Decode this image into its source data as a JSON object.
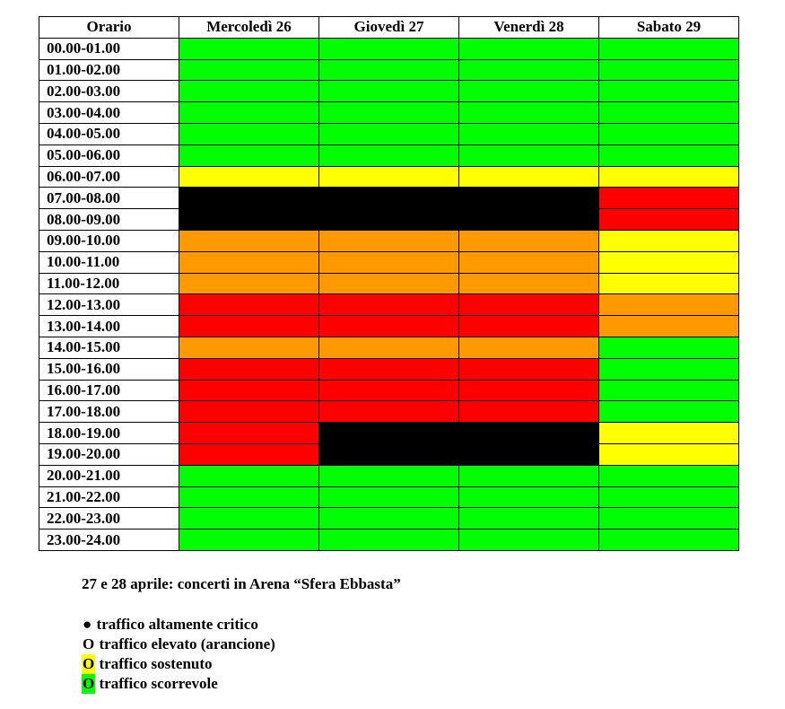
{
  "colors": {
    "green": "#00ff00",
    "yellow": "#ffff00",
    "orange": "#ff9900",
    "red": "#ff0000",
    "black": "#000000"
  },
  "table": {
    "header": [
      "Orario",
      "Mercoledì 26",
      "Giovedì 27",
      "Venerdì 28",
      "Sabato 29"
    ],
    "rows": [
      {
        "time": "00.00-01.00",
        "levels": [
          "green",
          "green",
          "green",
          "green"
        ]
      },
      {
        "time": "01.00-02.00",
        "levels": [
          "green",
          "green",
          "green",
          "green"
        ]
      },
      {
        "time": "02.00-03.00",
        "levels": [
          "green",
          "green",
          "green",
          "green"
        ]
      },
      {
        "time": "03.00-04.00",
        "levels": [
          "green",
          "green",
          "green",
          "green"
        ]
      },
      {
        "time": "04.00-05.00",
        "levels": [
          "green",
          "green",
          "green",
          "green"
        ]
      },
      {
        "time": "05.00-06.00",
        "levels": [
          "green",
          "green",
          "green",
          "green"
        ]
      },
      {
        "time": "06.00-07.00",
        "levels": [
          "yellow",
          "yellow",
          "yellow",
          "yellow"
        ]
      },
      {
        "time": "07.00-08.00",
        "levels": [
          "black",
          "black",
          "black",
          "red"
        ]
      },
      {
        "time": "08.00-09.00",
        "levels": [
          "black",
          "black",
          "black",
          "red"
        ]
      },
      {
        "time": "09.00-10.00",
        "levels": [
          "orange",
          "orange",
          "orange",
          "yellow"
        ]
      },
      {
        "time": "10.00-11.00",
        "levels": [
          "orange",
          "orange",
          "orange",
          "yellow"
        ]
      },
      {
        "time": "11.00-12.00",
        "levels": [
          "orange",
          "orange",
          "orange",
          "yellow"
        ]
      },
      {
        "time": "12.00-13.00",
        "levels": [
          "red",
          "red",
          "red",
          "orange"
        ]
      },
      {
        "time": "13.00-14.00",
        "levels": [
          "red",
          "red",
          "red",
          "orange"
        ]
      },
      {
        "time": "14.00-15.00",
        "levels": [
          "orange",
          "orange",
          "orange",
          "green"
        ]
      },
      {
        "time": "15.00-16.00",
        "levels": [
          "red",
          "red",
          "red",
          "green"
        ]
      },
      {
        "time": "16.00-17.00",
        "levels": [
          "red",
          "red",
          "red",
          "green"
        ]
      },
      {
        "time": "17.00-18.00",
        "levels": [
          "red",
          "red",
          "red",
          "green"
        ]
      },
      {
        "time": "18.00-19.00",
        "levels": [
          "red",
          "black",
          "black",
          "yellow"
        ]
      },
      {
        "time": "19.00-20.00",
        "levels": [
          "red",
          "black",
          "black",
          "yellow"
        ]
      },
      {
        "time": "20.00-21.00",
        "levels": [
          "green",
          "green",
          "green",
          "green"
        ]
      },
      {
        "time": "21.00-22.00",
        "levels": [
          "green",
          "green",
          "green",
          "green"
        ]
      },
      {
        "time": "22.00-23.00",
        "levels": [
          "green",
          "green",
          "green",
          "green"
        ]
      },
      {
        "time": "23.00-24.00",
        "levels": [
          "green",
          "green",
          "green",
          "green"
        ]
      }
    ]
  },
  "notes": {
    "event": "27 e 28 aprile: concerti in Arena “Sfera Ebbasta”",
    "legend": [
      {
        "symbol": "●",
        "text": " traffico altamente critico",
        "highlight": "none"
      },
      {
        "symbol": "O",
        "text": " traffico elevato (arancione)",
        "highlight": "none"
      },
      {
        "symbol": "O",
        "text": " traffico sostenuto",
        "highlight": "yellow"
      },
      {
        "symbol": "O",
        "text": " traffico scorrevole",
        "highlight": "green"
      }
    ]
  }
}
